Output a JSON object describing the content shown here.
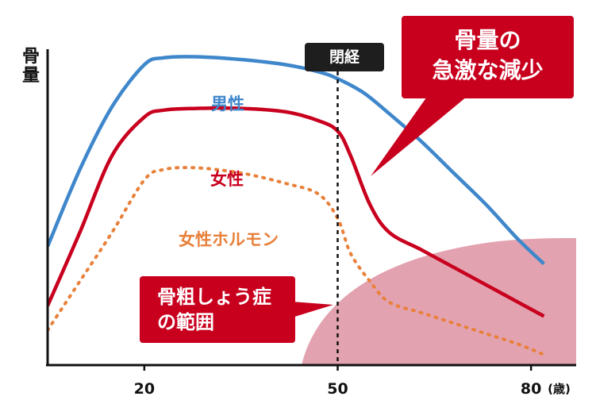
{
  "chart_data": {
    "type": "line",
    "ylabel": "骨量",
    "x_unit": "(歳)",
    "xlim": [
      5,
      87
    ],
    "ylim": [
      0,
      100
    ],
    "x_ticks": [
      20,
      50,
      80
    ],
    "grid": false,
    "series": [
      {
        "name": "男性",
        "color": "#3f87cb",
        "dashed": false,
        "x": [
          5,
          10,
          15,
          20,
          23,
          28,
          35,
          42,
          47,
          50,
          54,
          58,
          63,
          68,
          73,
          78,
          82
        ],
        "y": [
          34,
          56,
          74,
          86,
          88,
          88.3,
          87.5,
          86,
          84,
          82,
          78,
          72,
          64,
          55,
          46,
          36,
          29
        ]
      },
      {
        "name": "女性",
        "color": "#c8001e",
        "dashed": false,
        "x": [
          5,
          10,
          15,
          20,
          23,
          28,
          35,
          42,
          47,
          50,
          52,
          55,
          58,
          63,
          68,
          73,
          78,
          82
        ],
        "y": [
          17,
          38,
          60,
          71,
          73,
          73.5,
          73.5,
          72.5,
          70,
          67,
          60,
          46,
          38,
          33,
          28,
          23,
          18,
          14
        ]
      },
      {
        "name": "女性ホルモン",
        "color": "#e8803a",
        "dashed": true,
        "x": [
          5,
          10,
          15,
          20,
          23,
          28,
          35,
          42,
          47,
          50,
          52,
          55,
          58,
          63,
          68,
          73,
          78,
          82
        ],
        "y": [
          10,
          24,
          38,
          53,
          56,
          56.5,
          55,
          52,
          49,
          42,
          32,
          24,
          18,
          15,
          12,
          9,
          6,
          3
        ]
      }
    ],
    "annotations": {
      "menopause_x": 50,
      "menopause_label": "閉経",
      "bone_loss_label_lines": [
        "骨量の",
        "急激な減少"
      ],
      "osteoporosis_label_lines": [
        "骨粗しょう症",
        "の範囲"
      ]
    },
    "osteoporosis_zone_color": "#e3a2b0"
  }
}
